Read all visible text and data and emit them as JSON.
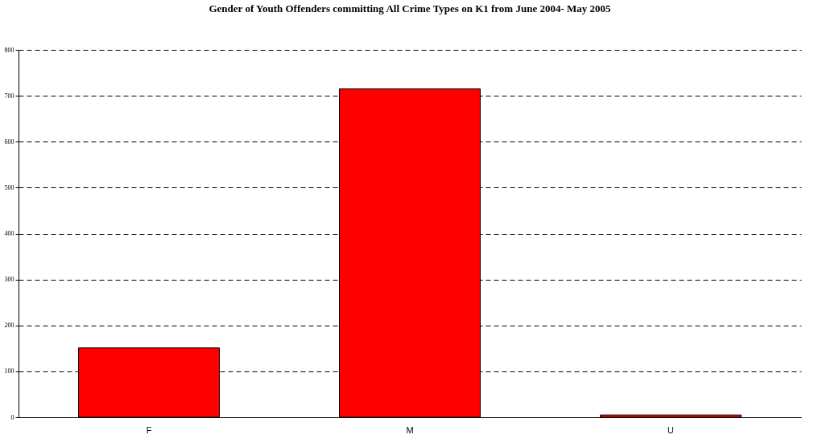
{
  "chart_data": {
    "type": "bar",
    "title": "Gender of Youth Offenders committing All Crime Types on K1 from June 2004- May 2005",
    "categories": [
      "F",
      "M",
      "U"
    ],
    "values": [
      151,
      715,
      5
    ],
    "color": "#ff0000",
    "ylim": [
      0,
      800
    ],
    "yticks": [
      0,
      100,
      200,
      300,
      400,
      500,
      600,
      700,
      800
    ],
    "grid": "y",
    "line_style": "dashed"
  }
}
